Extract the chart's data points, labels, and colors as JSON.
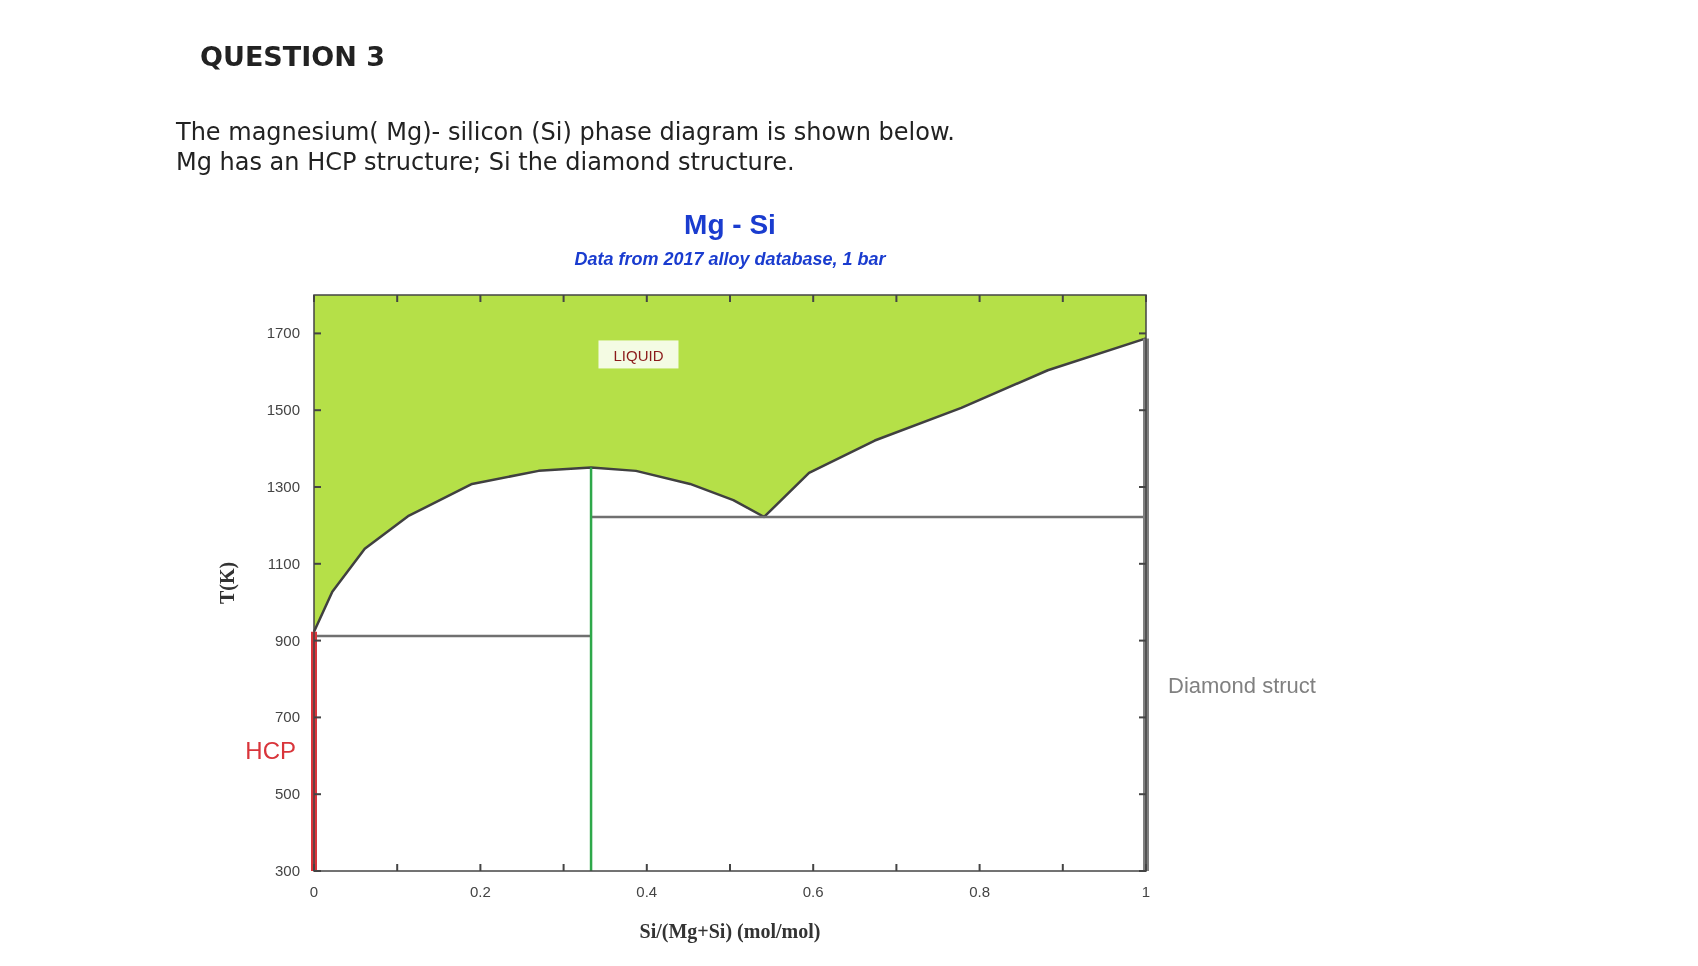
{
  "chart_data": {
    "type": "line",
    "title": "Mg - Si",
    "subtitle": "Data from 2017 alloy database, 1 bar",
    "xlabel": "Si/(Mg+Si) (mol/mol)",
    "ylabel": "T(K)",
    "annotations": [
      "QUESTION 3",
      "The magnesium( Mg)- silicon (Si) phase diagram is shown below.",
      "Mg has an HCP structure; Si the diamond structure.",
      "LIQUID"
    ],
    "xlim": [
      0,
      1
    ],
    "ylim": [
      300,
      1800
    ],
    "xticks": [
      0,
      {
        "value": 0.1,
        "label": null
      },
      0.2,
      {
        "value": 0.3,
        "label": null
      },
      0.4,
      {
        "value": 0.5,
        "label": null
      },
      0.6,
      {
        "value": 0.7,
        "label": null
      },
      0.8,
      {
        "value": 0.9,
        "label": null
      },
      1
    ],
    "yticks": [
      300,
      500,
      700,
      900,
      1100,
      1300,
      1500,
      1700
    ],
    "grid": false,
    "marker": "none",
    "series": [
      {
        "color": "#404040",
        "x": [
          0,
          0.022,
          0.061,
          0.113,
          0.19,
          0.27,
          0.333,
          0.387,
          0.452,
          0.504,
          0.541,
          0.595,
          0.674,
          0.778,
          0.882,
          1
        ],
        "values": [
          923,
          1027,
          1139,
          1224,
          1308,
          1342,
          1351,
          1342,
          1308,
          1266,
          1222,
          1337,
          1421,
          1506,
          1604,
          1687
        ]
      },
      {
        "color": "#707070",
        "x": [
          0,
          0.333
        ],
        "values": [
          912,
          912
        ]
      },
      {
        "color": "#707070",
        "x": [
          0.333,
          1
        ],
        "values": [
          1222,
          1222
        ]
      },
      {
        "name": "HCP",
        "color": "#d9343a",
        "x": [
          0,
          0
        ],
        "values": [
          300,
          923
        ]
      },
      {
        "color": "#2ea84a",
        "x": [
          0.333,
          0.333
        ],
        "values": [
          300,
          1351
        ]
      },
      {
        "name": "Diamond struct",
        "color": "#808080",
        "x": [
          1,
          1
        ],
        "values": [
          300,
          1687
        ]
      }
    ]
  }
}
